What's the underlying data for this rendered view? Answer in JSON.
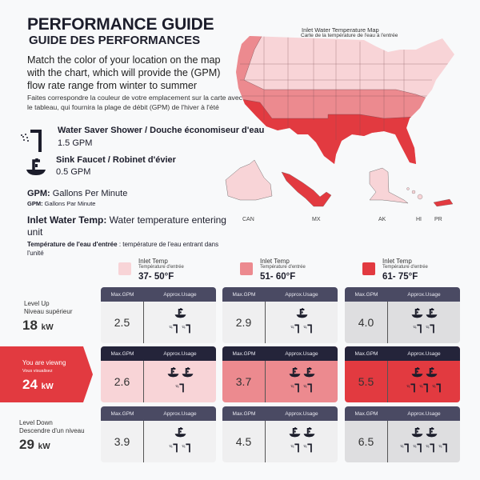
{
  "header": {
    "title": "PERFORMANCE GUIDE",
    "title_fr": "GUIDE DES PERFORMANCES",
    "intro": "Match the color of your location on the map with the chart, which will provide the (GPM) flow rate range from winter to summer",
    "intro_fr": "Faites correspondre la couleur de votre emplacement sur la carte avec le tableau, qui fournira la plage de débit (GPM) de l'hiver à l'été"
  },
  "fixtures": [
    {
      "icon": "shower-icon",
      "label": "Water Saver Shower / Douche économiseur d'eau",
      "rate": "1.5 GPM"
    },
    {
      "icon": "sink-faucet-icon",
      "label": "Sink Faucet / Robinet d'évier",
      "rate": "0.5 GPM"
    }
  ],
  "glossary": {
    "gpm_term": "GPM:",
    "gpm_def": " Gallons Per Minute",
    "gpm_term_fr": "GPM:",
    "gpm_def_fr": " Gallons Par Minute",
    "inlet_term": "Inlet Water Temp:",
    "inlet_def": " Water temperature entering unit",
    "inlet_term_fr": "Température de l'eau d'entrée",
    "inlet_def_fr": " : température de l'eau entrant dans l'unité"
  },
  "map": {
    "title": "Inlet Water Temperature Map",
    "title_fr": "Carte de la température de l'eau à l'entrée",
    "labels": [
      "CAN",
      "MX",
      "AK",
      "HI",
      "PR"
    ]
  },
  "colors": {
    "light": "#f8d4d7",
    "medium": "#ec8a8f",
    "dark": "#e23a40"
  },
  "legend": [
    {
      "label": "Inlet Temp",
      "label_fr": "Température d'entrée",
      "range": "37- 50°F"
    },
    {
      "label": "Inlet Temp",
      "label_fr": "Température d'entrée",
      "range": "51- 60°F"
    },
    {
      "label": "Inlet Temp",
      "label_fr": "Température d'entrée",
      "range": "61- 75°F"
    }
  ],
  "table": {
    "col_max": "Max.GPM",
    "col_usage": "Approx.Usage",
    "rows": [
      {
        "label": "Level Up",
        "label_fr": "Niveau supérieur",
        "kw": "18",
        "unit": "kW",
        "cells": [
          {
            "gpm": "2.5",
            "sinks": 1,
            "showers": 2
          },
          {
            "gpm": "2.9",
            "sinks": 1,
            "showers": 2
          },
          {
            "gpm": "4.0",
            "sinks": 2,
            "showers": 2
          }
        ]
      },
      {
        "label": "You are viewng",
        "label_fr": "Vous visualisez",
        "kw": "24",
        "unit": "kW",
        "cells": [
          {
            "gpm": "2.6",
            "sinks": 2,
            "showers": 1
          },
          {
            "gpm": "3.7",
            "sinks": 2,
            "showers": 2
          },
          {
            "gpm": "5.5",
            "sinks": 2,
            "showers": 3
          }
        ]
      },
      {
        "label": "Level Down",
        "label_fr": "Descendre d'un niveau",
        "kw": "29",
        "unit": "kW",
        "cells": [
          {
            "gpm": "3.9",
            "sinks": 1,
            "showers": 2
          },
          {
            "gpm": "4.5",
            "sinks": 2,
            "showers": 2
          },
          {
            "gpm": "6.5",
            "sinks": 2,
            "showers": 4
          }
        ]
      }
    ]
  }
}
